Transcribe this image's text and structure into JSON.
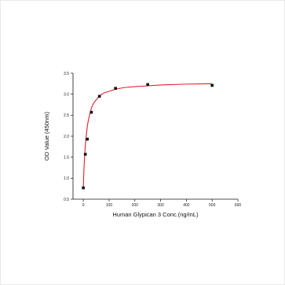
{
  "chart_data": {
    "type": "scatter",
    "title": "",
    "xlabel": "Human Glypican 3 Conc.(ng/mL)",
    "ylabel": "OD Value (450nm)",
    "xlim": [
      -40,
      600
    ],
    "ylim": [
      0.5,
      3.5
    ],
    "x_ticks": [
      0,
      100,
      200,
      300,
      400,
      500,
      600
    ],
    "y_ticks": [
      0.5,
      1.0,
      1.5,
      2.0,
      2.5,
      3.0,
      3.5
    ],
    "grid": false,
    "legend": "none",
    "series": [
      {
        "x": [
          0,
          7.8,
          15.6,
          31.25,
          62.5,
          125,
          250,
          500
        ],
        "y": [
          0.77,
          1.57,
          1.93,
          2.57,
          2.95,
          3.14,
          3.23,
          3.21
        ],
        "marker": "square",
        "color": "#111111"
      }
    ],
    "fit_curve": {
      "color": "#e0202a",
      "model": "4PL",
      "x": [
        0,
        2,
        4,
        7.8,
        10,
        15.6,
        20,
        31.25,
        40,
        62.5,
        80,
        125,
        160,
        200,
        250,
        300,
        400,
        500
      ],
      "y": [
        0.76,
        1.15,
        1.42,
        1.78,
        1.94,
        2.24,
        2.4,
        2.67,
        2.79,
        2.96,
        3.03,
        3.12,
        3.16,
        3.18,
        3.2,
        3.22,
        3.24,
        3.25
      ]
    }
  }
}
